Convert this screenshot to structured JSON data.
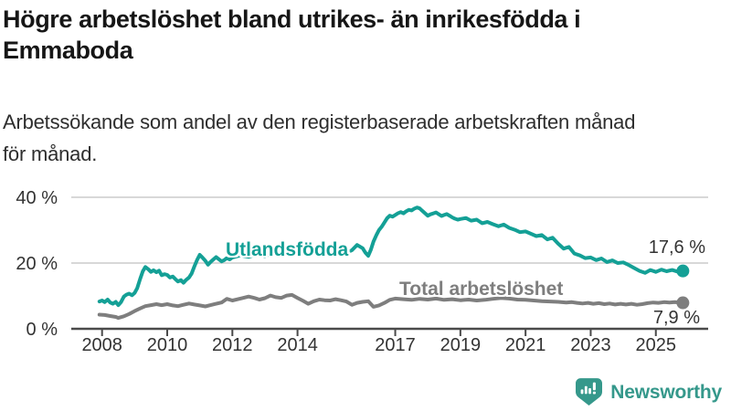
{
  "header": {
    "title_line1": "Högre arbetslöshet bland utrikes- än inrikesfödda i",
    "title_line2": "Emmaboda",
    "subtitle_line1": "Arbetssökande som andel av den registerbaserade arbetskraften månad",
    "subtitle_line2": "för månad."
  },
  "footer": {
    "brand": "Newsworthy",
    "brand_color": "#35988b",
    "logo_icon": "speech-bubble-bar-chart-exclamation"
  },
  "chart_data": {
    "type": "line",
    "title": "Högre arbetslöshet bland utrikes- än inrikesfödda i Emmaboda",
    "subtitle": "Arbetssökande som andel av den registerbaserade arbetskraften månad för månad.",
    "grid": "horizontal",
    "grid_color": "#d8d8d8",
    "axis_color": "#4a4a4a",
    "x_axis": {
      "range": [
        2007.9,
        2025.95
      ],
      "ticks": [
        2008,
        2010,
        2012,
        2014,
        2017,
        2019,
        2021,
        2023,
        2025
      ],
      "tick_labels": [
        "2008",
        "2010",
        "2012",
        "2014",
        "2017",
        "2019",
        "2021",
        "2023",
        "2025"
      ]
    },
    "y_axis": {
      "range": [
        0,
        43
      ],
      "unit": "%",
      "ticks": [
        0,
        20,
        40
      ],
      "tick_labels": [
        "0 %",
        "20 %",
        "40 %"
      ]
    },
    "series": [
      {
        "name": "Utlandsfödda",
        "color": "#14a096",
        "end_label": "17,6 %",
        "end_value": 17.6,
        "points": [
          [
            2007.92,
            8.3
          ],
          [
            2008.0,
            8.6
          ],
          [
            2008.08,
            8.1
          ],
          [
            2008.17,
            8.9
          ],
          [
            2008.25,
            8.0
          ],
          [
            2008.33,
            7.6
          ],
          [
            2008.42,
            8.2
          ],
          [
            2008.5,
            7.2
          ],
          [
            2008.58,
            8.1
          ],
          [
            2008.67,
            9.8
          ],
          [
            2008.75,
            10.4
          ],
          [
            2008.83,
            10.7
          ],
          [
            2008.92,
            10.2
          ],
          [
            2009.0,
            10.9
          ],
          [
            2009.08,
            12.4
          ],
          [
            2009.17,
            15.2
          ],
          [
            2009.25,
            17.5
          ],
          [
            2009.33,
            18.8
          ],
          [
            2009.42,
            18.1
          ],
          [
            2009.5,
            17.3
          ],
          [
            2009.58,
            17.8
          ],
          [
            2009.67,
            17.2
          ],
          [
            2009.75,
            17.7
          ],
          [
            2009.83,
            16.3
          ],
          [
            2009.92,
            16.6
          ],
          [
            2010.0,
            16.4
          ],
          [
            2010.08,
            15.6
          ],
          [
            2010.17,
            15.9
          ],
          [
            2010.25,
            15.1
          ],
          [
            2010.33,
            14.4
          ],
          [
            2010.42,
            14.8
          ],
          [
            2010.5,
            14.0
          ],
          [
            2010.58,
            14.9
          ],
          [
            2010.67,
            15.6
          ],
          [
            2010.75,
            16.8
          ],
          [
            2010.83,
            18.9
          ],
          [
            2010.92,
            21.0
          ],
          [
            2011.0,
            22.5
          ],
          [
            2011.08,
            21.7
          ],
          [
            2011.17,
            20.7
          ],
          [
            2011.25,
            19.5
          ],
          [
            2011.33,
            20.3
          ],
          [
            2011.42,
            21.1
          ],
          [
            2011.5,
            21.8
          ],
          [
            2011.58,
            21.2
          ],
          [
            2011.67,
            20.5
          ],
          [
            2011.75,
            20.9
          ],
          [
            2011.83,
            21.5
          ],
          [
            2011.92,
            21.1
          ],
          [
            2012.0,
            21.7
          ],
          [
            2012.25,
            22.3
          ],
          [
            2012.5,
            21.9
          ],
          [
            2012.75,
            22.6
          ],
          [
            2013.0,
            22.1
          ],
          [
            2013.25,
            22.9
          ],
          [
            2013.5,
            22.4
          ],
          [
            2013.75,
            23.1
          ],
          [
            2014.0,
            22.6
          ],
          [
            2014.25,
            23.3
          ],
          [
            2014.5,
            22.8
          ],
          [
            2014.75,
            23.4
          ],
          [
            2015.0,
            22.9
          ],
          [
            2015.25,
            23.5
          ],
          [
            2015.5,
            23.1
          ],
          [
            2015.67,
            23.9
          ],
          [
            2015.83,
            25.5
          ],
          [
            2016.0,
            24.5
          ],
          [
            2016.08,
            23.2
          ],
          [
            2016.17,
            22.2
          ],
          [
            2016.25,
            24.0
          ],
          [
            2016.33,
            26.5
          ],
          [
            2016.42,
            28.5
          ],
          [
            2016.5,
            30.0
          ],
          [
            2016.58,
            31.0
          ],
          [
            2016.67,
            32.4
          ],
          [
            2016.75,
            33.6
          ],
          [
            2016.83,
            34.4
          ],
          [
            2016.92,
            34.1
          ],
          [
            2017.0,
            34.6
          ],
          [
            2017.08,
            35.1
          ],
          [
            2017.17,
            35.5
          ],
          [
            2017.25,
            35.1
          ],
          [
            2017.33,
            35.7
          ],
          [
            2017.42,
            36.2
          ],
          [
            2017.5,
            36.0
          ],
          [
            2017.58,
            36.5
          ],
          [
            2017.67,
            36.9
          ],
          [
            2017.75,
            36.6
          ],
          [
            2017.83,
            35.9
          ],
          [
            2017.92,
            35.1
          ],
          [
            2018.0,
            34.4
          ],
          [
            2018.08,
            34.8
          ],
          [
            2018.17,
            35.1
          ],
          [
            2018.25,
            35.4
          ],
          [
            2018.33,
            34.9
          ],
          [
            2018.42,
            34.3
          ],
          [
            2018.5,
            34.6
          ],
          [
            2018.58,
            34.9
          ],
          [
            2018.67,
            34.4
          ],
          [
            2018.75,
            33.9
          ],
          [
            2018.83,
            33.5
          ],
          [
            2018.92,
            33.2
          ],
          [
            2019.0,
            33.4
          ],
          [
            2019.17,
            33.7
          ],
          [
            2019.33,
            32.9
          ],
          [
            2019.5,
            33.2
          ],
          [
            2019.67,
            32.1
          ],
          [
            2019.83,
            32.5
          ],
          [
            2020.0,
            31.8
          ],
          [
            2020.17,
            31.2
          ],
          [
            2020.33,
            31.7
          ],
          [
            2020.5,
            30.7
          ],
          [
            2020.67,
            30.1
          ],
          [
            2020.83,
            29.4
          ],
          [
            2021.0,
            29.6
          ],
          [
            2021.17,
            28.9
          ],
          [
            2021.33,
            28.2
          ],
          [
            2021.5,
            28.5
          ],
          [
            2021.67,
            27.2
          ],
          [
            2021.83,
            27.7
          ],
          [
            2022.0,
            25.9
          ],
          [
            2022.17,
            24.4
          ],
          [
            2022.33,
            24.9
          ],
          [
            2022.5,
            22.9
          ],
          [
            2022.67,
            22.3
          ],
          [
            2022.83,
            21.5
          ],
          [
            2023.0,
            21.7
          ],
          [
            2023.17,
            20.9
          ],
          [
            2023.33,
            21.4
          ],
          [
            2023.5,
            20.3
          ],
          [
            2023.67,
            20.8
          ],
          [
            2023.83,
            20.0
          ],
          [
            2024.0,
            20.2
          ],
          [
            2024.17,
            19.4
          ],
          [
            2024.33,
            18.5
          ],
          [
            2024.5,
            17.6
          ],
          [
            2024.67,
            17.0
          ],
          [
            2024.83,
            17.9
          ],
          [
            2025.0,
            17.3
          ],
          [
            2025.17,
            18.0
          ],
          [
            2025.33,
            17.5
          ],
          [
            2025.5,
            17.9
          ],
          [
            2025.67,
            17.4
          ],
          [
            2025.83,
            17.6
          ]
        ]
      },
      {
        "name": "Total arbetslöshet",
        "color": "#7e7e7e",
        "end_label": "7,9 %",
        "end_value": 7.9,
        "points": [
          [
            2007.92,
            4.3
          ],
          [
            2008.08,
            4.2
          ],
          [
            2008.25,
            3.9
          ],
          [
            2008.42,
            3.6
          ],
          [
            2008.5,
            3.3
          ],
          [
            2008.67,
            3.8
          ],
          [
            2008.83,
            4.5
          ],
          [
            2009.0,
            5.4
          ],
          [
            2009.17,
            6.2
          ],
          [
            2009.33,
            6.9
          ],
          [
            2009.5,
            7.2
          ],
          [
            2009.67,
            7.5
          ],
          [
            2009.83,
            7.2
          ],
          [
            2010.0,
            7.5
          ],
          [
            2010.17,
            7.1
          ],
          [
            2010.33,
            6.9
          ],
          [
            2010.5,
            7.3
          ],
          [
            2010.67,
            7.7
          ],
          [
            2010.83,
            7.4
          ],
          [
            2011.0,
            7.1
          ],
          [
            2011.17,
            6.8
          ],
          [
            2011.33,
            7.2
          ],
          [
            2011.5,
            7.6
          ],
          [
            2011.67,
            8.0
          ],
          [
            2011.83,
            9.1
          ],
          [
            2012.0,
            8.6
          ],
          [
            2012.17,
            9.0
          ],
          [
            2012.33,
            9.4
          ],
          [
            2012.5,
            9.8
          ],
          [
            2012.67,
            9.4
          ],
          [
            2012.83,
            8.9
          ],
          [
            2013.0,
            9.3
          ],
          [
            2013.17,
            10.1
          ],
          [
            2013.33,
            9.6
          ],
          [
            2013.5,
            9.4
          ],
          [
            2013.67,
            10.1
          ],
          [
            2013.83,
            10.3
          ],
          [
            2014.0,
            9.4
          ],
          [
            2014.17,
            8.5
          ],
          [
            2014.33,
            7.6
          ],
          [
            2014.5,
            8.4
          ],
          [
            2014.67,
            8.9
          ],
          [
            2014.83,
            8.7
          ],
          [
            2015.0,
            8.6
          ],
          [
            2015.17,
            9.0
          ],
          [
            2015.33,
            8.7
          ],
          [
            2015.5,
            8.3
          ],
          [
            2015.67,
            7.3
          ],
          [
            2015.83,
            7.9
          ],
          [
            2016.0,
            8.2
          ],
          [
            2016.17,
            8.4
          ],
          [
            2016.33,
            6.7
          ],
          [
            2016.5,
            7.1
          ],
          [
            2016.67,
            7.9
          ],
          [
            2016.83,
            8.8
          ],
          [
            2017.0,
            9.2
          ],
          [
            2017.25,
            9.0
          ],
          [
            2017.5,
            8.8
          ],
          [
            2017.75,
            9.1
          ],
          [
            2018.0,
            8.9
          ],
          [
            2018.25,
            9.2
          ],
          [
            2018.5,
            8.8
          ],
          [
            2018.75,
            9.0
          ],
          [
            2019.0,
            8.7
          ],
          [
            2019.25,
            8.9
          ],
          [
            2019.5,
            8.6
          ],
          [
            2019.75,
            8.8
          ],
          [
            2020.0,
            9.1
          ],
          [
            2020.25,
            9.4
          ],
          [
            2020.5,
            9.2
          ],
          [
            2020.75,
            8.9
          ],
          [
            2021.0,
            8.8
          ],
          [
            2021.25,
            8.6
          ],
          [
            2021.5,
            8.4
          ],
          [
            2021.75,
            8.3
          ],
          [
            2022.0,
            8.2
          ],
          [
            2022.25,
            8.0
          ],
          [
            2022.42,
            8.1
          ],
          [
            2022.58,
            7.9
          ],
          [
            2022.75,
            7.7
          ],
          [
            2022.92,
            7.9
          ],
          [
            2023.08,
            7.6
          ],
          [
            2023.25,
            7.8
          ],
          [
            2023.42,
            7.5
          ],
          [
            2023.58,
            7.7
          ],
          [
            2023.75,
            7.4
          ],
          [
            2023.92,
            7.6
          ],
          [
            2024.08,
            7.4
          ],
          [
            2024.25,
            7.6
          ],
          [
            2024.42,
            7.3
          ],
          [
            2024.58,
            7.5
          ],
          [
            2024.75,
            7.8
          ],
          [
            2024.92,
            8.0
          ],
          [
            2025.08,
            7.9
          ],
          [
            2025.25,
            8.1
          ],
          [
            2025.42,
            8.0
          ],
          [
            2025.58,
            8.1
          ],
          [
            2025.75,
            8.0
          ],
          [
            2025.83,
            7.9
          ]
        ]
      }
    ]
  }
}
